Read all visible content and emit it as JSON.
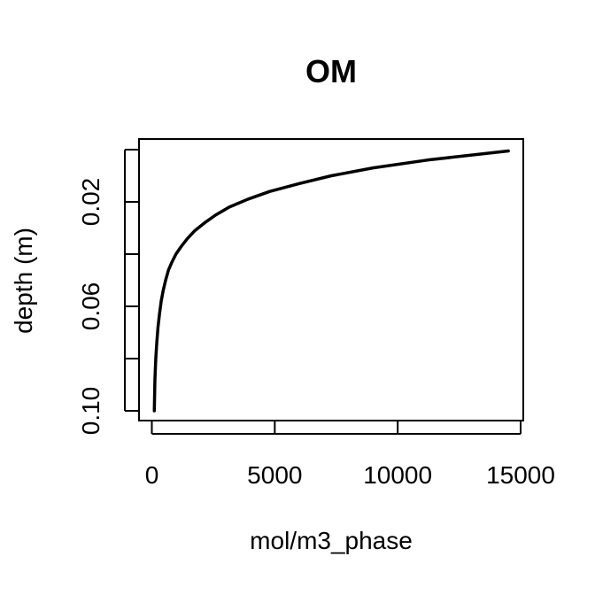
{
  "chart_data": {
    "type": "line",
    "title": "OM",
    "xlabel": "mol/m3_phase",
    "ylabel": "depth (m)",
    "xlim": [
      0,
      15000
    ],
    "ylim": [
      0.1,
      0
    ],
    "y_reversed": true,
    "x_ticks": [
      0,
      5000,
      10000,
      15000
    ],
    "x_tick_labels": [
      "0",
      "5000",
      "10000",
      "15000"
    ],
    "y_ticks": [
      0.0,
      0.02,
      0.04,
      0.06,
      0.08,
      0.1
    ],
    "y_tick_labels": [
      "",
      "0.02",
      "",
      "0.06",
      "",
      "0.10"
    ],
    "grid": false,
    "series": [
      {
        "color": "#000000",
        "x": [
          14500,
          11200,
          9000,
          7300,
          6000,
          4800,
          3900,
          3150,
          2600,
          2150,
          1750,
          1450,
          1200,
          980,
          820,
          680,
          560,
          460,
          380,
          310,
          250,
          200,
          160,
          125,
          100
        ],
        "y": [
          0.0005,
          0.004,
          0.007,
          0.01,
          0.013,
          0.016,
          0.019,
          0.022,
          0.025,
          0.028,
          0.031,
          0.034,
          0.037,
          0.04,
          0.043,
          0.046,
          0.05,
          0.054,
          0.058,
          0.063,
          0.068,
          0.074,
          0.08,
          0.088,
          0.1
        ]
      }
    ]
  }
}
